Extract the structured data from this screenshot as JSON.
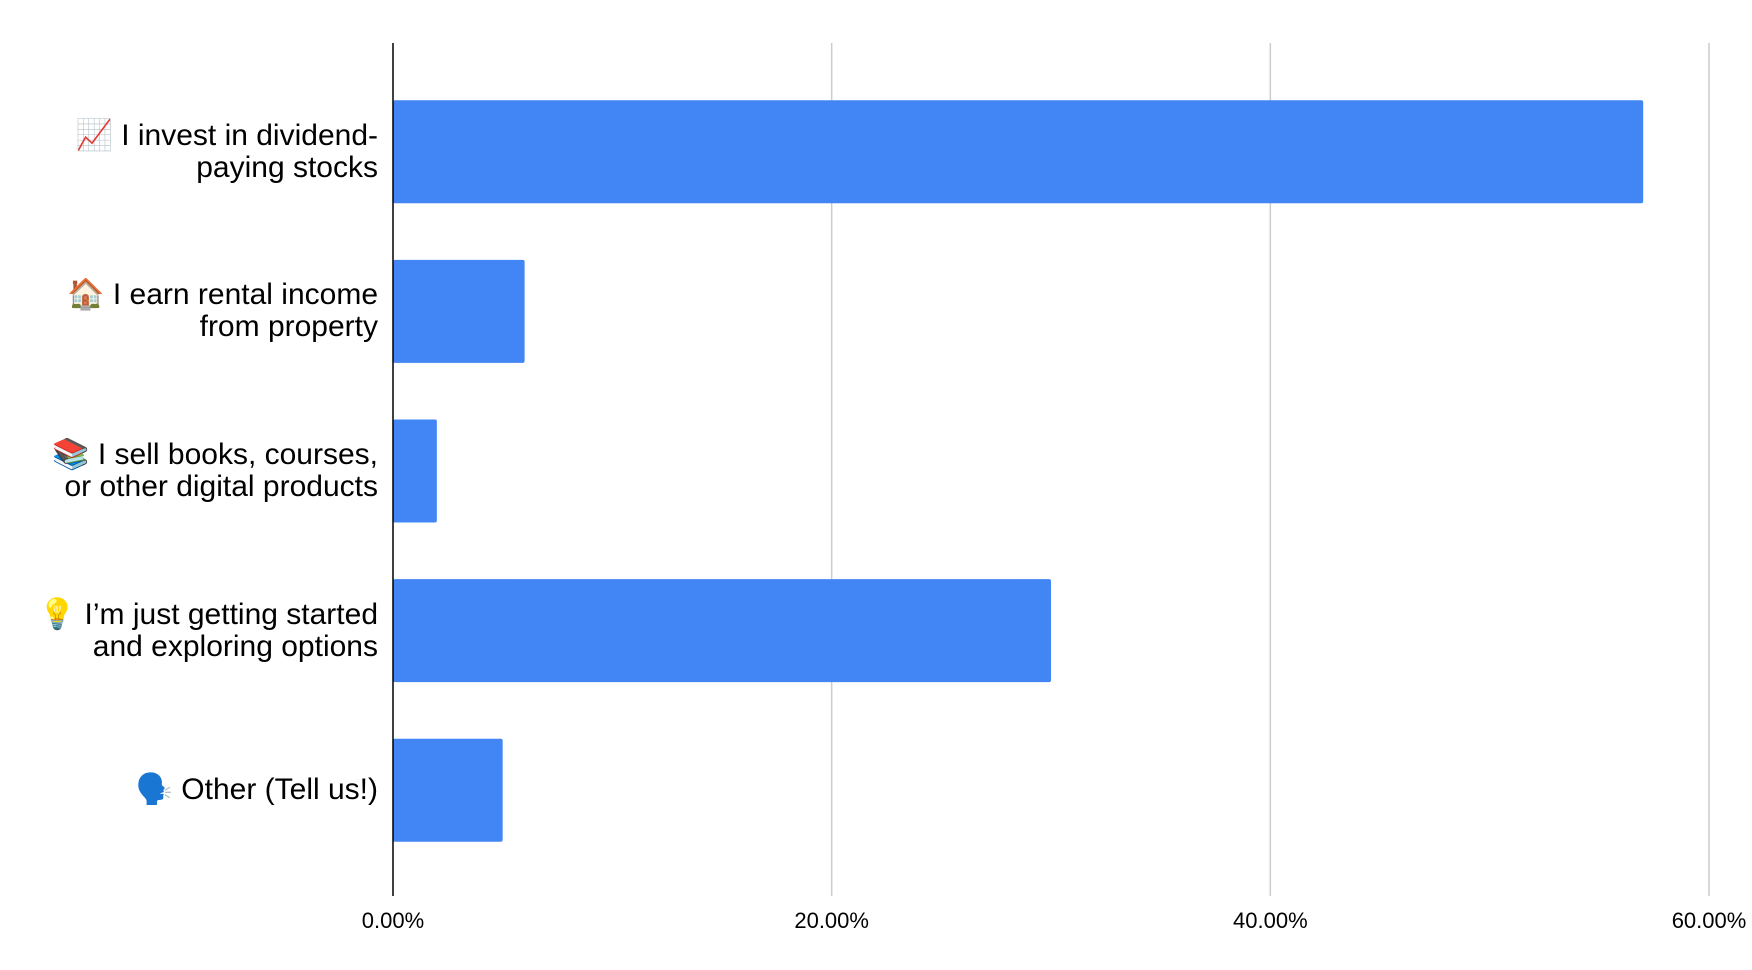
{
  "chart_data": {
    "type": "bar",
    "orientation": "horizontal",
    "categories": [
      "📈 I invest in dividend-paying stocks",
      "🏠 I earn rental income from property",
      "📚 I sell books, courses, or other digital products",
      "💡 I’m just getting started and exploring options",
      "🗣️ Other (Tell us!)"
    ],
    "values": [
      57,
      6,
      2,
      30,
      5
    ],
    "color": "#4285f4",
    "xlim": [
      0,
      60
    ],
    "xticks": [
      {
        "value": 0,
        "label": "0.00%"
      },
      {
        "value": 20,
        "label": "20.00%"
      },
      {
        "value": 40,
        "label": "40.00%"
      },
      {
        "value": 60,
        "label": "60.00%"
      }
    ],
    "grid": true
  }
}
